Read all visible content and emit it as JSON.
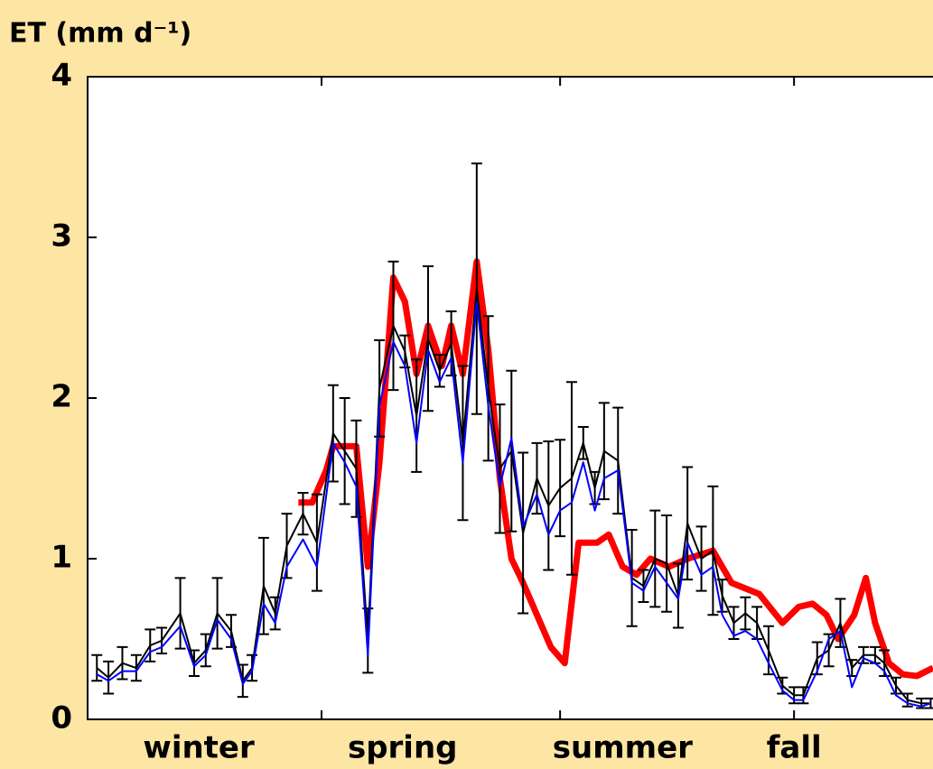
{
  "chart_data": {
    "type": "line",
    "y_label": "ET (mm d⁻¹)",
    "background": "#fde5a3",
    "xlim": [
      0,
      365
    ],
    "xticks": [
      101,
      204,
      305
    ],
    "xlabels": [
      {
        "value": 48,
        "label": "winter"
      },
      {
        "value": 136,
        "label": "spring"
      },
      {
        "value": 231,
        "label": "summer"
      },
      {
        "value": 305,
        "label": "fall"
      }
    ],
    "ylim": [
      0,
      4
    ],
    "yticks": [
      0,
      1,
      2,
      3,
      4
    ],
    "series": [
      {
        "color": "#ff0000",
        "width": 7,
        "x": [
          91,
          97,
          103,
          106,
          116,
          121,
          126,
          132,
          137,
          142,
          147,
          153,
          157,
          162,
          168,
          173,
          178,
          183,
          188,
          194,
          200,
          206,
          212,
          220,
          225,
          231,
          237,
          243,
          251,
          259,
          270,
          278,
          290,
          300,
          307,
          313,
          319,
          324,
          331,
          336,
          340,
          346,
          352,
          358,
          365
        ],
        "values": [
          1.35,
          1.35,
          1.55,
          1.7,
          1.7,
          0.95,
          1.6,
          2.75,
          2.6,
          2.15,
          2.45,
          2.2,
          2.45,
          2.15,
          2.85,
          2.3,
          1.5,
          1.0,
          0.85,
          0.65,
          0.45,
          0.35,
          1.1,
          1.1,
          1.15,
          0.95,
          0.9,
          1.0,
          0.95,
          1.0,
          1.05,
          0.85,
          0.78,
          0.6,
          0.7,
          0.72,
          0.65,
          0.5,
          0.65,
          0.88,
          0.6,
          0.35,
          0.28,
          0.27,
          0.32
        ]
      },
      {
        "color": "#000000",
        "width": 2,
        "x": [
          4,
          9,
          15,
          21,
          27,
          32,
          40,
          46,
          51,
          56,
          62,
          67,
          71,
          76,
          81,
          86,
          93,
          99,
          106,
          111,
          116,
          121,
          126,
          132,
          137,
          142,
          147,
          152,
          157,
          162,
          168,
          173,
          178,
          183,
          188,
          194,
          199,
          204,
          209,
          214,
          219,
          223,
          229,
          235,
          240,
          245,
          250,
          255,
          259,
          265,
          270,
          274,
          279,
          284,
          289,
          294,
          300,
          305,
          309,
          315,
          320,
          325,
          330,
          335,
          340,
          344,
          349,
          354,
          360,
          364
        ],
        "values": [
          0.32,
          0.26,
          0.35,
          0.32,
          0.46,
          0.49,
          0.66,
          0.35,
          0.43,
          0.66,
          0.55,
          0.24,
          0.32,
          0.83,
          0.66,
          1.08,
          1.28,
          1.1,
          1.78,
          1.67,
          1.56,
          0.49,
          2.06,
          2.45,
          2.29,
          1.89,
          2.37,
          2.17,
          2.34,
          1.72,
          2.68,
          2.06,
          1.56,
          1.67,
          1.16,
          1.5,
          1.33,
          1.44,
          1.5,
          1.72,
          1.44,
          1.67,
          1.61,
          0.88,
          0.83,
          1.0,
          0.97,
          0.77,
          1.22,
          1.0,
          1.05,
          0.77,
          0.6,
          0.66,
          0.6,
          0.43,
          0.21,
          0.15,
          0.15,
          0.38,
          0.43,
          0.6,
          0.32,
          0.4,
          0.4,
          0.35,
          0.21,
          0.12,
          0.1,
          0.1
        ],
        "errors": [
          0.08,
          0.1,
          0.1,
          0.08,
          0.1,
          0.08,
          0.22,
          0.08,
          0.1,
          0.22,
          0.1,
          0.1,
          0.08,
          0.3,
          0.1,
          0.2,
          0.13,
          0.3,
          0.3,
          0.33,
          0.3,
          0.2,
          0.3,
          0.4,
          0.1,
          0.35,
          0.45,
          0.1,
          0.2,
          0.48,
          0.78,
          0.45,
          0.4,
          0.5,
          0.5,
          0.22,
          0.4,
          0.3,
          0.6,
          0.1,
          0.1,
          0.3,
          0.33,
          0.3,
          0.1,
          0.3,
          0.3,
          0.2,
          0.35,
          0.2,
          0.4,
          0.1,
          0.1,
          0.1,
          0.1,
          0.15,
          0.05,
          0.05,
          0.05,
          0.1,
          0.1,
          0.15,
          0.05,
          0.05,
          0.05,
          0.08,
          0.05,
          0.04,
          0.03,
          0.03
        ]
      },
      {
        "color": "#0000ff",
        "width": 2,
        "x": [
          4,
          9,
          15,
          21,
          27,
          32,
          40,
          46,
          51,
          56,
          62,
          67,
          71,
          76,
          81,
          86,
          93,
          99,
          106,
          111,
          116,
          121,
          126,
          132,
          137,
          142,
          147,
          152,
          157,
          162,
          168,
          173,
          178,
          183,
          188,
          194,
          199,
          204,
          209,
          214,
          219,
          223,
          229,
          235,
          240,
          245,
          250,
          255,
          259,
          265,
          270,
          274,
          279,
          284,
          289,
          294,
          300,
          305,
          309,
          315,
          320,
          325,
          330,
          335,
          340,
          344,
          349,
          354,
          360,
          364
        ],
        "values": [
          0.28,
          0.24,
          0.3,
          0.3,
          0.42,
          0.45,
          0.58,
          0.33,
          0.4,
          0.62,
          0.5,
          0.22,
          0.3,
          0.72,
          0.6,
          0.95,
          1.12,
          0.95,
          1.72,
          1.6,
          1.45,
          0.4,
          1.95,
          2.35,
          2.2,
          1.72,
          2.3,
          2.1,
          2.25,
          1.6,
          2.6,
          1.95,
          1.45,
          1.75,
          1.2,
          1.4,
          1.15,
          1.3,
          1.35,
          1.6,
          1.3,
          1.5,
          1.55,
          0.85,
          0.8,
          0.95,
          0.85,
          0.75,
          1.1,
          0.9,
          0.95,
          0.65,
          0.52,
          0.55,
          0.5,
          0.35,
          0.18,
          0.12,
          0.12,
          0.3,
          0.5,
          0.55,
          0.2,
          0.38,
          0.35,
          0.3,
          0.15,
          0.1,
          0.08,
          0.1
        ]
      }
    ]
  }
}
